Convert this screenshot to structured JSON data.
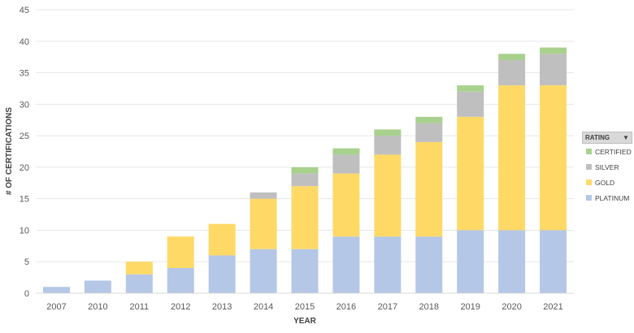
{
  "chart_data": {
    "type": "bar",
    "stacked": true,
    "title": "",
    "xlabel": "YEAR",
    "ylabel": "# OF CERTIFICATIONS",
    "ylim": [
      0,
      45
    ],
    "yticks": [
      0,
      5,
      10,
      15,
      20,
      25,
      30,
      35,
      40,
      45
    ],
    "grid": true,
    "legend_position": "right",
    "legend_title": "RATING",
    "categories": [
      "2007",
      "2010",
      "2011",
      "2012",
      "2013",
      "2014",
      "2015",
      "2016",
      "2017",
      "2018",
      "2019",
      "2020",
      "2021"
    ],
    "series": [
      {
        "name": "PLATINUM",
        "color": "#b4c7e7",
        "values": [
          1,
          2,
          3,
          4,
          6,
          7,
          7,
          9,
          9,
          9,
          10,
          10,
          10
        ]
      },
      {
        "name": "GOLD",
        "color": "#ffd966",
        "values": [
          0,
          0,
          2,
          5,
          5,
          8,
          10,
          10,
          13,
          15,
          18,
          23,
          23
        ]
      },
      {
        "name": "SILVER",
        "color": "#bfbfbf",
        "values": [
          0,
          0,
          0,
          0,
          0,
          1,
          2,
          3,
          3,
          3,
          4,
          4,
          5
        ]
      },
      {
        "name": "CERTIFIED",
        "color": "#a9d18e",
        "values": [
          0,
          0,
          0,
          0,
          0,
          0,
          1,
          1,
          1,
          1,
          1,
          1,
          1
        ]
      }
    ]
  },
  "legend": {
    "header": "RATING",
    "dropdown_icon": "▼",
    "items": [
      {
        "label": "CERTIFIED",
        "color": "#a9d18e"
      },
      {
        "label": "SILVER",
        "color": "#bfbfbf"
      },
      {
        "label": "GOLD",
        "color": "#ffd966"
      },
      {
        "label": "PLATINUM",
        "color": "#b4c7e7"
      }
    ]
  }
}
